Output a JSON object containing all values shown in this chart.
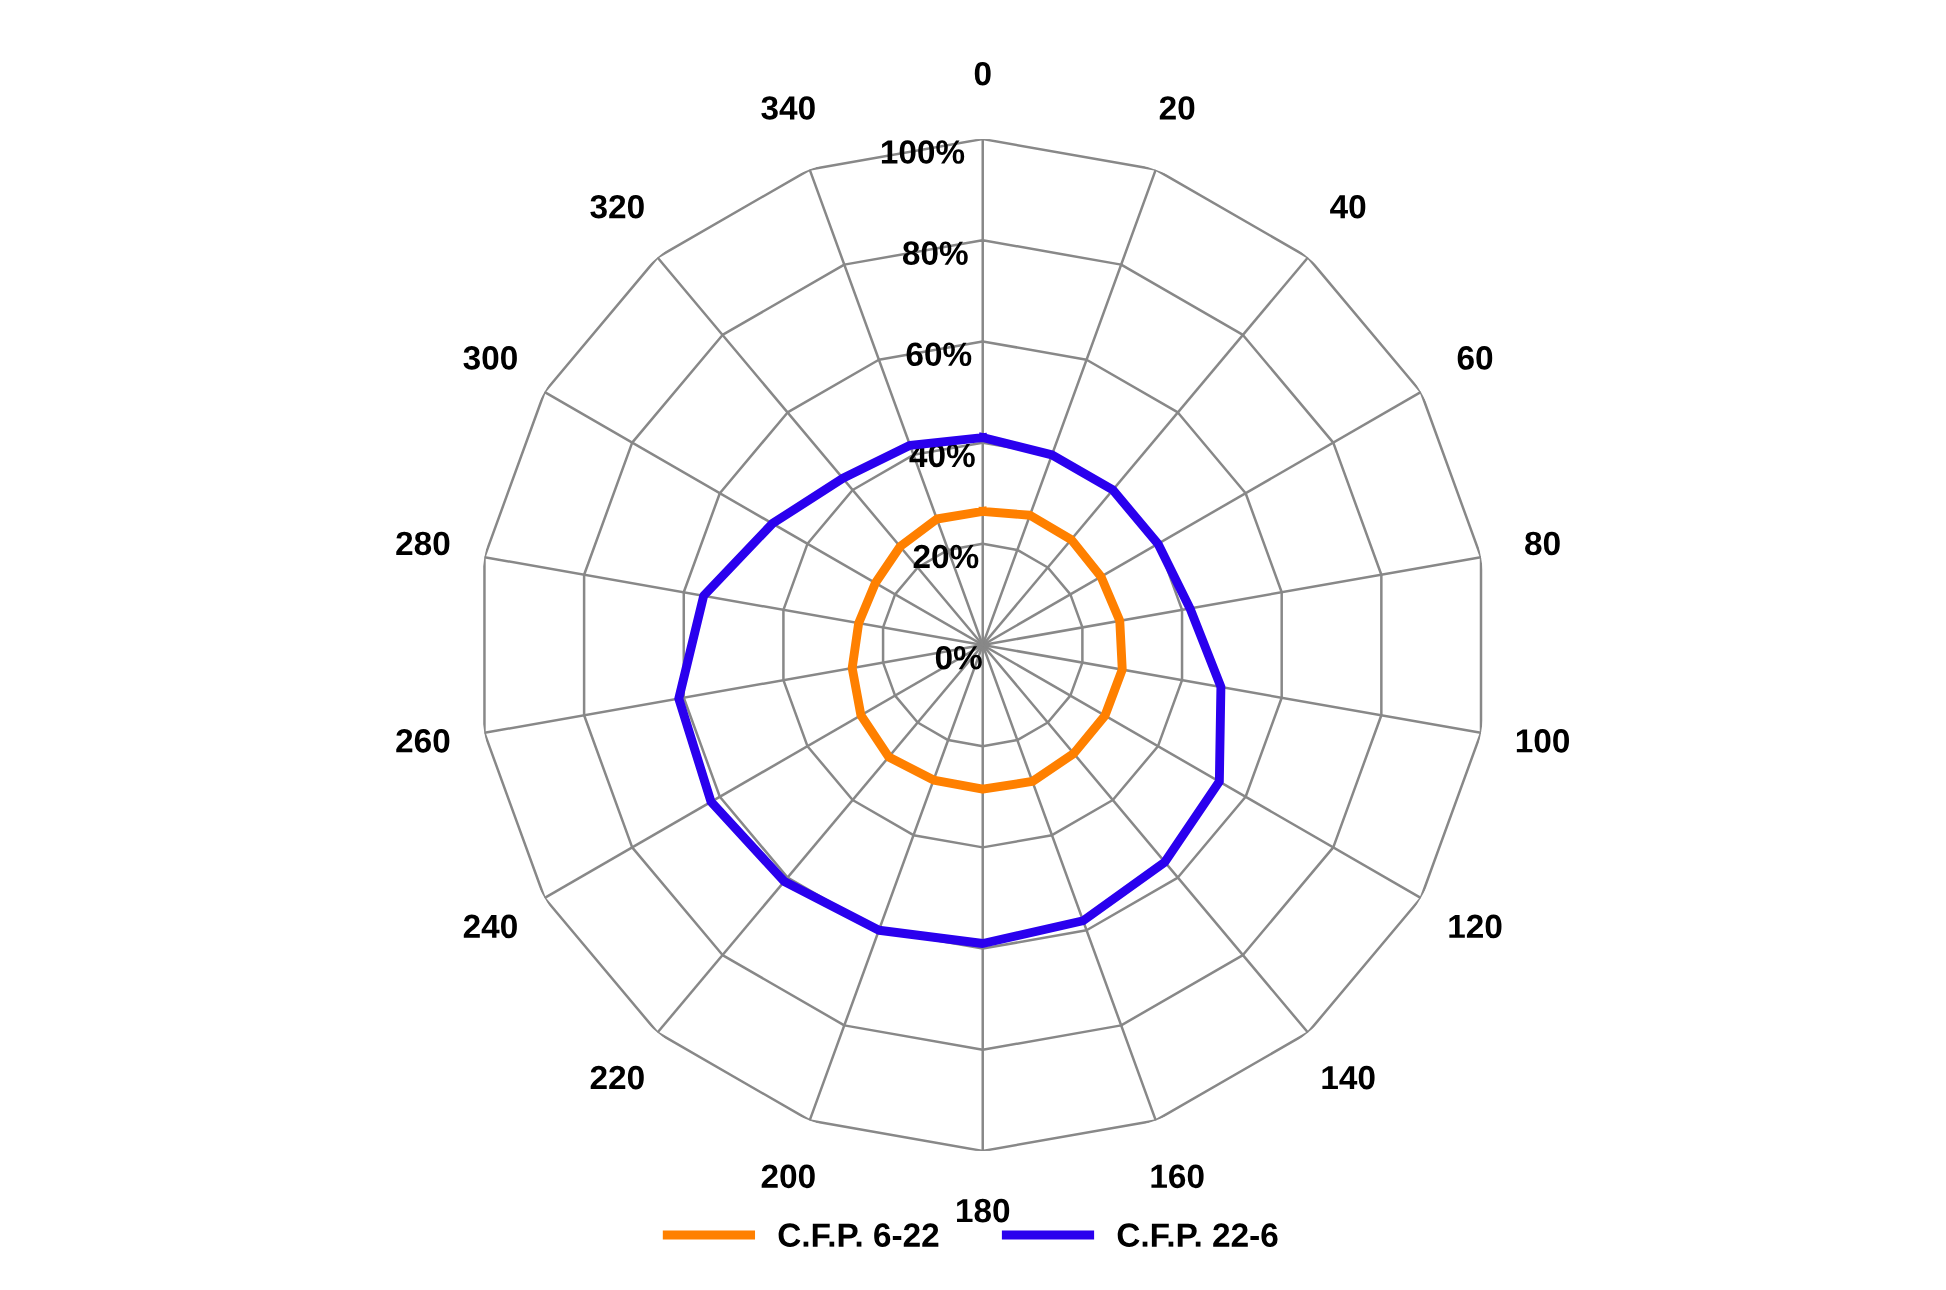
{
  "chart_data": {
    "type": "radar",
    "categories": [
      "0",
      "20",
      "40",
      "60",
      "80",
      "100",
      "120",
      "140",
      "160",
      "180",
      "200",
      "220",
      "240",
      "260",
      "280",
      "300",
      "320",
      "340"
    ],
    "series": [
      {
        "name": "C.F.P. 6-22",
        "color": "#ff8000",
        "values": [
          26.4,
          27.3,
          27.2,
          27,
          27.5,
          28,
          27.9,
          28,
          28.7,
          28.5,
          28.4,
          28.9,
          27.8,
          26.2,
          24.9,
          24.5,
          25.4,
          26.5
        ]
      },
      {
        "name": "C.F.P. 22-6",
        "color": "#2a00ee",
        "values": [
          41,
          40,
          40,
          40,
          41.6,
          47.8,
          54,
          56,
          58,
          59,
          60,
          61,
          62,
          61,
          56,
          48,
          43,
          42
        ]
      }
    ],
    "ylim": [
      0,
      100
    ],
    "yticks": [
      {
        "value": 0,
        "label": "0%"
      },
      {
        "value": 20,
        "label": "20%"
      },
      {
        "value": 40,
        "label": "40%"
      },
      {
        "value": 60,
        "label": "60%"
      },
      {
        "value": 80,
        "label": "80%"
      },
      {
        "value": 100,
        "label": "100%"
      }
    ],
    "grid": true,
    "legend": "bottom",
    "line_style": "solid",
    "marker": "none"
  }
}
